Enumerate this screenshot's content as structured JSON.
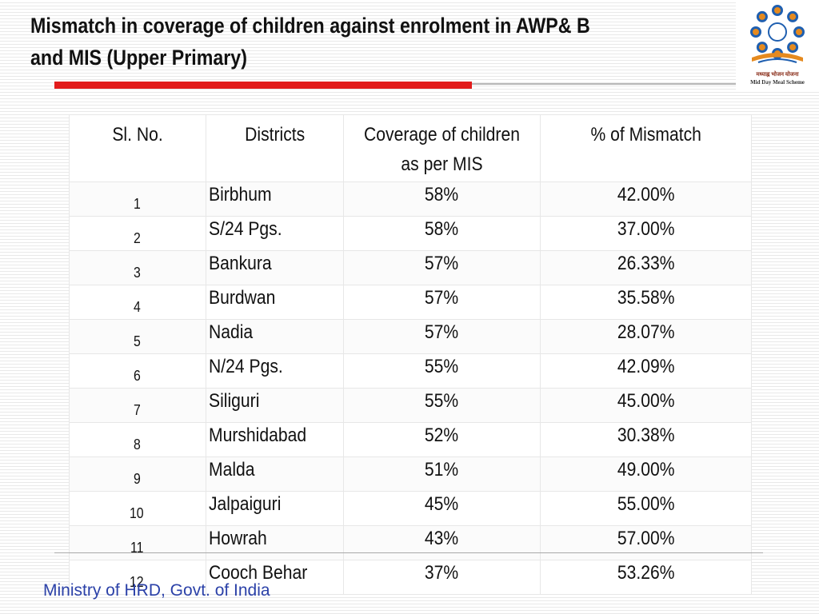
{
  "slide": {
    "title_line1": "Mismatch in coverage of children against enrolment in AWP& B",
    "title_line2": "and MIS (Upper Primary)",
    "footer": "Ministry of HRD, Govt. of India"
  },
  "logo": {
    "caption_hindi": "मध्याह्न भोजन योजना",
    "caption_english": "Mid Day Meal Scheme"
  },
  "table": {
    "headers": [
      "Sl. No.",
      "Districts",
      "Coverage of children as per MIS",
      "% of Mismatch"
    ],
    "rows": [
      {
        "sl": "1",
        "district": "Birbhum",
        "coverage": "58%",
        "mismatch": "42.00%"
      },
      {
        "sl": "2",
        "district": "S/24 Pgs.",
        "coverage": "58%",
        "mismatch": "37.00%"
      },
      {
        "sl": "3",
        "district": "Bankura",
        "coverage": "57%",
        "mismatch": "26.33%"
      },
      {
        "sl": "4",
        "district": "Burdwan",
        "coverage": "57%",
        "mismatch": "35.58%"
      },
      {
        "sl": "5",
        "district": "Nadia",
        "coverage": "57%",
        "mismatch": "28.07%"
      },
      {
        "sl": "6",
        "district": "N/24 Pgs.",
        "coverage": "55%",
        "mismatch": "42.09%"
      },
      {
        "sl": "7",
        "district": "Siliguri",
        "coverage": "55%",
        "mismatch": "45.00%"
      },
      {
        "sl": "8",
        "district": "Murshidabad",
        "coverage": "52%",
        "mismatch": "30.38%"
      },
      {
        "sl": "9",
        "district": "Malda",
        "coverage": "51%",
        "mismatch": "49.00%"
      },
      {
        "sl": "10",
        "district": "Jalpaiguri",
        "coverage": "45%",
        "mismatch": "55.00%"
      },
      {
        "sl": "11",
        "district": "Howrah",
        "coverage": "43%",
        "mismatch": "57.00%"
      },
      {
        "sl": "12",
        "district": "Cooch Behar",
        "coverage": "37%",
        "mismatch": "53.26%"
      }
    ]
  },
  "colors": {
    "title_rule_accent": "#e21b1b",
    "footer_text": "#2b41a8"
  }
}
